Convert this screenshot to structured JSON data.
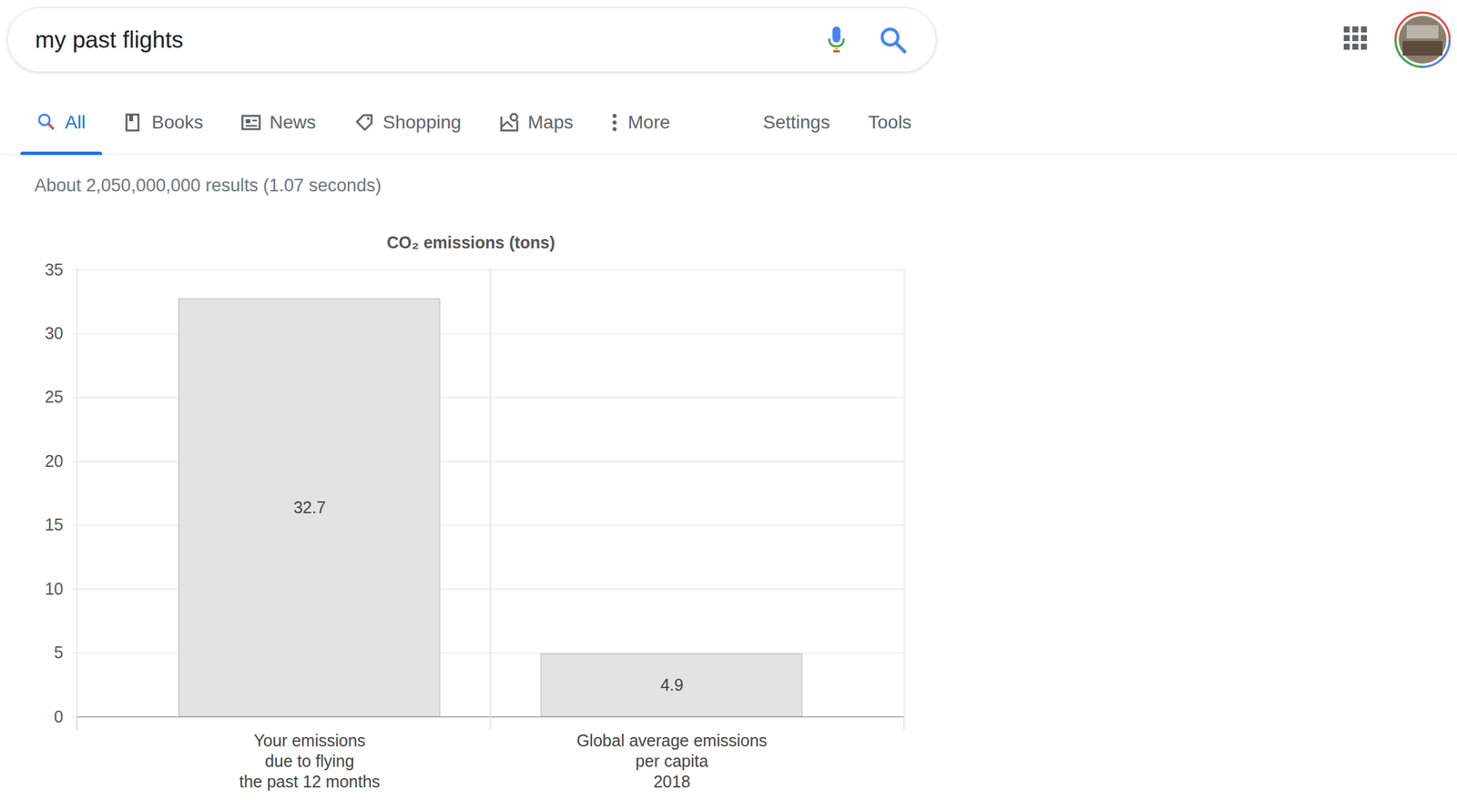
{
  "search": {
    "query": "my past flights"
  },
  "tabs": [
    "All",
    "Books",
    "News",
    "Shopping",
    "Maps",
    "More"
  ],
  "links": [
    "Settings",
    "Tools"
  ],
  "result_stats": "About 2,050,000,000 results (1.07 seconds)",
  "chart_data": {
    "type": "bar",
    "title": "CO₂ emissions (tons)",
    "categories": [
      "Your emissions\ndue to flying\nthe past 12 months",
      "Global average emissions\nper capita\n2018"
    ],
    "values": [
      32.7,
      4.9
    ],
    "color": "#e3e3e3",
    "ylim": [
      0,
      35
    ],
    "yticks": [
      0,
      5,
      10,
      15,
      20,
      25,
      30,
      35
    ],
    "grid": true,
    "data_labels": true
  }
}
